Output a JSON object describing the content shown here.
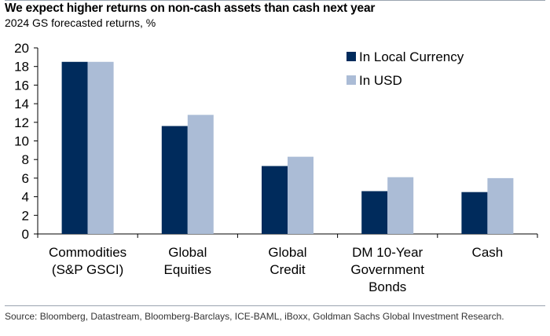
{
  "header": {
    "title": "We expect higher returns on non-cash assets than cash next year",
    "subtitle": "2024 GS forecasted returns, %"
  },
  "footer": {
    "source": "Source: Bloomberg, Datastream, Bloomberg-Barclays, ICE-BAML, iBoxx, Goldman Sachs Global Investment Research."
  },
  "chart_data": {
    "type": "bar",
    "title": "We expect higher returns on non-cash assets than cash next year",
    "subtitle": "2024 GS forecasted returns, %",
    "xlabel": "",
    "ylabel": "",
    "categories": [
      [
        "Commodities",
        "(S&P GSCI)"
      ],
      [
        "Global",
        "Equities"
      ],
      [
        "Global",
        "Credit"
      ],
      [
        "DM 10-Year",
        "Government",
        "Bonds"
      ],
      [
        "Cash"
      ]
    ],
    "series": [
      {
        "name": "In Local Currency",
        "color": "#002b5c",
        "values": [
          18.5,
          11.6,
          7.3,
          4.6,
          4.5
        ]
      },
      {
        "name": "In USD",
        "color": "#abbcd6",
        "values": [
          18.5,
          12.8,
          8.3,
          6.1,
          6.0
        ]
      }
    ],
    "ylim": [
      0,
      20
    ],
    "yticks": [
      0,
      2,
      4,
      6,
      8,
      10,
      12,
      14,
      16,
      18,
      20
    ],
    "grid": false,
    "legend_position": "top-right"
  }
}
